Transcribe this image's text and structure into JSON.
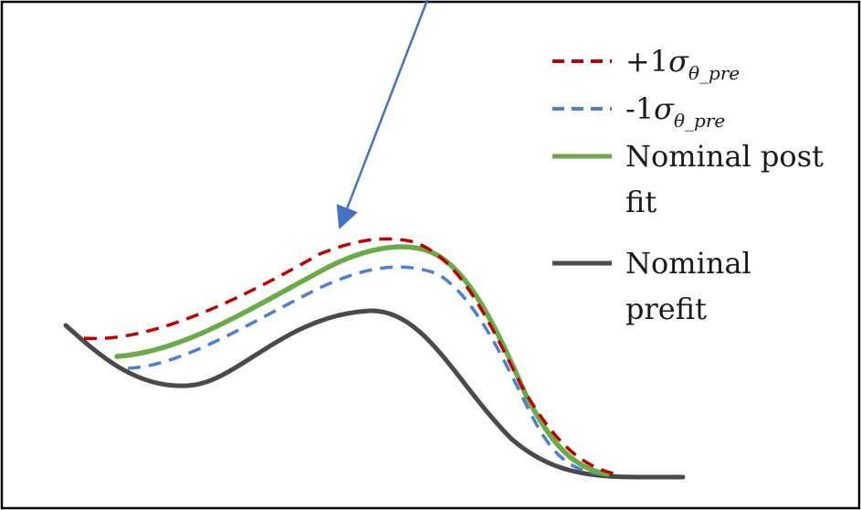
{
  "colors": {
    "plus_sigma": "#c00000",
    "minus_sigma": "#4a7fd6",
    "nominal_postfit": "#6aaa48",
    "nominal_prefit": "#4a4a4a",
    "arrow": "#4472c4",
    "frame": "#000000"
  },
  "legend": {
    "plus_sigma": {
      "prefix": "+1",
      "symbol": "σ",
      "subscript": "θ_pre"
    },
    "minus_sigma": {
      "prefix": "-1",
      "symbol": "σ",
      "subscript": "θ_pre"
    },
    "nominal_postfit": {
      "line1": "Nominal post",
      "line2": "fit"
    },
    "nominal_prefit": {
      "line1": "Nominal",
      "line2": "prefit"
    }
  }
}
